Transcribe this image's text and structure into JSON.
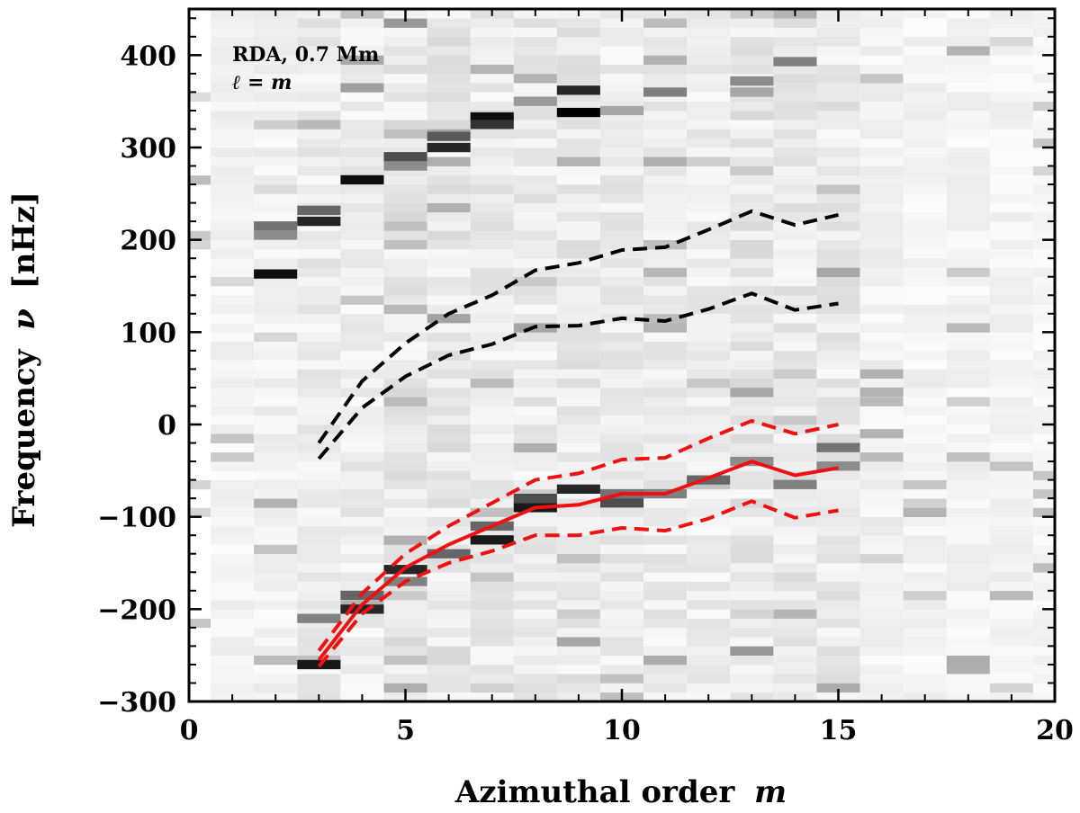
{
  "chart_data": {
    "type": "heatmap",
    "xlabel": "Azimuthal order",
    "xlabel_var": "m",
    "ylabel": "Frequency",
    "ylabel_var": "ν",
    "ylabel_unit": "[nHz]",
    "xlim": [
      0,
      20
    ],
    "ylim": [
      -300,
      450
    ],
    "x_ticks": [
      0,
      5,
      10,
      15,
      20
    ],
    "x_tick_labels": [
      "0",
      "5",
      "10",
      "15",
      "20"
    ],
    "y_ticks": [
      -300,
      -200,
      -100,
      0,
      100,
      200,
      300,
      400
    ],
    "y_tick_labels": [
      "−300",
      "−200",
      "−100",
      "0",
      "100",
      "200",
      "300",
      "400"
    ],
    "annotation_line1": "RDA, 0.7 Mm",
    "annotation_line2": "ℓ = m",
    "colormap": "greys",
    "heatmap_bin_width_nhz": 10,
    "heatmap_background": [
      [
        0,
        0.06,
        0.07,
        0.1,
        0.09,
        0.12,
        0.12,
        0.1,
        0.1,
        0.11,
        0.1,
        0.1,
        0.09,
        0.12,
        0.11,
        0.11,
        0.07,
        0.06,
        0.06,
        0.06,
        0.05
      ],
      [
        0,
        0.06,
        0.07,
        0.1,
        0.09,
        0.12,
        0.12,
        0.1,
        0.1,
        0.11,
        0.1,
        0.1,
        0.09,
        0.12,
        0.11,
        0.11,
        0.07,
        0.06,
        0.06,
        0.06,
        0.05
      ]
    ],
    "heatmap_features": [
      {
        "m": 2,
        "nu": 163,
        "intensity": 0.95
      },
      {
        "m": 2,
        "nu": 205,
        "intensity": 0.45
      },
      {
        "m": 2,
        "nu": 215,
        "intensity": 0.55
      },
      {
        "m": 3,
        "nu": -260,
        "intensity": 0.9
      },
      {
        "m": 3,
        "nu": -210,
        "intensity": 0.5
      },
      {
        "m": 3,
        "nu": 220,
        "intensity": 0.85
      },
      {
        "m": 3,
        "nu": 232,
        "intensity": 0.6
      },
      {
        "m": 4,
        "nu": -200,
        "intensity": 0.85
      },
      {
        "m": 4,
        "nu": -185,
        "intensity": 0.6
      },
      {
        "m": 4,
        "nu": 265,
        "intensity": 0.95
      },
      {
        "m": 5,
        "nu": -157,
        "intensity": 0.85
      },
      {
        "m": 5,
        "nu": -170,
        "intensity": 0.5
      },
      {
        "m": 5,
        "nu": 290,
        "intensity": 0.7
      },
      {
        "m": 5,
        "nu": 280,
        "intensity": 0.45
      },
      {
        "m": 6,
        "nu": -140,
        "intensity": 0.6
      },
      {
        "m": 6,
        "nu": 300,
        "intensity": 0.85
      },
      {
        "m": 6,
        "nu": 312,
        "intensity": 0.65
      },
      {
        "m": 7,
        "nu": -125,
        "intensity": 0.9
      },
      {
        "m": 7,
        "nu": -110,
        "intensity": 0.6
      },
      {
        "m": 7,
        "nu": 333,
        "intensity": 0.95
      },
      {
        "m": 7,
        "nu": 325,
        "intensity": 0.8
      },
      {
        "m": 8,
        "nu": -90,
        "intensity": 0.9
      },
      {
        "m": 8,
        "nu": -80,
        "intensity": 0.7
      },
      {
        "m": 8,
        "nu": 350,
        "intensity": 0.4
      },
      {
        "m": 9,
        "nu": -70,
        "intensity": 0.85
      },
      {
        "m": 9,
        "nu": 338,
        "intensity": 1.0
      },
      {
        "m": 9,
        "nu": 362,
        "intensity": 0.85
      },
      {
        "m": 10,
        "nu": -85,
        "intensity": 0.7
      },
      {
        "m": 10,
        "nu": -75,
        "intensity": 0.55
      },
      {
        "m": 10,
        "nu": 340,
        "intensity": 0.35
      },
      {
        "m": 11,
        "nu": -75,
        "intensity": 0.5
      },
      {
        "m": 11,
        "nu": 360,
        "intensity": 0.5
      },
      {
        "m": 12,
        "nu": -60,
        "intensity": 0.6
      },
      {
        "m": 13,
        "nu": -40,
        "intensity": 0.45
      },
      {
        "m": 13,
        "nu": 372,
        "intensity": 0.45
      },
      {
        "m": 13,
        "nu": 360,
        "intensity": 0.35
      },
      {
        "m": 14,
        "nu": -65,
        "intensity": 0.5
      },
      {
        "m": 14,
        "nu": 393,
        "intensity": 0.5
      },
      {
        "m": 15,
        "nu": -25,
        "intensity": 0.55
      },
      {
        "m": 15,
        "nu": -45,
        "intensity": 0.45
      },
      {
        "m": 16,
        "nu": 35,
        "intensity": 0.3
      },
      {
        "m": 16,
        "nu": -10,
        "intensity": 0.3
      }
    ],
    "series": [
      {
        "name": "black-dashed-upper",
        "color": "#000000",
        "style": "dashed",
        "m": [
          3,
          4,
          5,
          6,
          7,
          8,
          9,
          10,
          11,
          12,
          13,
          14,
          15
        ],
        "nu": [
          -20,
          47,
          88,
          120,
          140,
          167,
          175,
          189,
          192,
          211,
          231,
          216,
          227
        ]
      },
      {
        "name": "black-dashed-lower",
        "color": "#000000",
        "style": "dashed",
        "m": [
          3,
          4,
          5,
          6,
          7,
          8,
          9,
          10,
          11,
          12,
          13,
          14,
          15
        ],
        "nu": [
          -37,
          18,
          52,
          75,
          87,
          106,
          107,
          115,
          112,
          125,
          142,
          124,
          131
        ]
      },
      {
        "name": "red-solid",
        "color": "#ee1111",
        "style": "solid",
        "m": [
          3,
          4,
          5,
          6,
          7,
          8,
          9,
          10,
          11,
          12,
          13,
          14,
          15
        ],
        "nu": [
          -255,
          -195,
          -155,
          -130,
          -110,
          -90,
          -87,
          -75,
          -75,
          -58,
          -40,
          -55,
          -47
        ]
      },
      {
        "name": "red-dashed-upper",
        "color": "#ee1111",
        "style": "dashed",
        "m": [
          3,
          4,
          5,
          6,
          7,
          8,
          9,
          10,
          11,
          12,
          13,
          14,
          15
        ],
        "nu": [
          -245,
          -183,
          -140,
          -110,
          -85,
          -60,
          -53,
          -38,
          -36,
          -15,
          4,
          -10,
          0
        ]
      },
      {
        "name": "red-dashed-lower",
        "color": "#ee1111",
        "style": "dashed",
        "m": [
          3,
          4,
          5,
          6,
          7,
          8,
          9,
          10,
          11,
          12,
          13,
          14,
          15
        ],
        "nu": [
          -262,
          -205,
          -170,
          -150,
          -137,
          -120,
          -120,
          -112,
          -115,
          -102,
          -83,
          -101,
          -93
        ]
      }
    ]
  }
}
